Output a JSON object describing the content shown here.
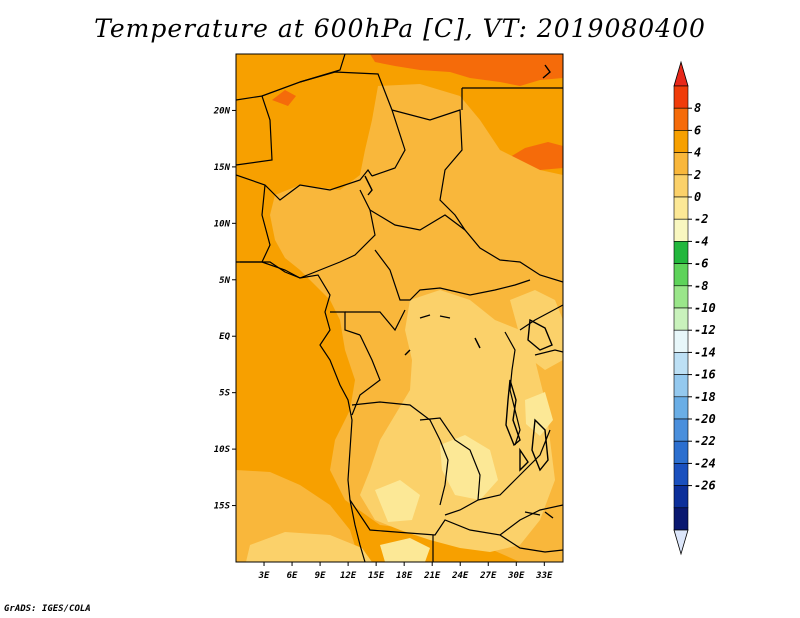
{
  "title": "Temperature at 600hPa [C], VT: 2019080400",
  "credit": "GrADS: IGES/COLA",
  "map": {
    "lon_range": [
      0,
      35
    ],
    "lat_range": [
      -20,
      25
    ],
    "lon_ticks": [
      {
        "value": 3,
        "label": "3E"
      },
      {
        "value": 6,
        "label": "6E"
      },
      {
        "value": 9,
        "label": "9E"
      },
      {
        "value": 12,
        "label": "12E"
      },
      {
        "value": 15,
        "label": "15E"
      },
      {
        "value": 18,
        "label": "18E"
      },
      {
        "value": 21,
        "label": "21E"
      },
      {
        "value": 24,
        "label": "24E"
      },
      {
        "value": 27,
        "label": "27E"
      },
      {
        "value": 30,
        "label": "30E"
      },
      {
        "value": 33,
        "label": "33E"
      }
    ],
    "lat_ticks": [
      {
        "value": 20,
        "label": "20N"
      },
      {
        "value": 15,
        "label": "15N"
      },
      {
        "value": 10,
        "label": "10N"
      },
      {
        "value": 5,
        "label": "5N"
      },
      {
        "value": 0,
        "label": "EQ"
      },
      {
        "value": -5,
        "label": "5S"
      },
      {
        "value": -10,
        "label": "10S"
      },
      {
        "value": -15,
        "label": "15S"
      }
    ]
  },
  "colorbar": {
    "labels": [
      "8",
      "6",
      "4",
      "2",
      "0",
      "-2",
      "-4",
      "-6",
      "-8",
      "-10",
      "-12",
      "-14",
      "-16",
      "-18",
      "-20",
      "-22",
      "-24",
      "-26"
    ],
    "colors": [
      "#f03c0a",
      "#f56b0a",
      "#f7a000",
      "#f9b73b",
      "#fbd16a",
      "#fce896",
      "#f9f7c0",
      "#22b73c",
      "#5ed35a",
      "#9ae68a",
      "#c9f2bc",
      "#e8f7fa",
      "#bde0f5",
      "#94c9ef",
      "#6aaee6",
      "#4a8fdc",
      "#2c6fcf",
      "#1a50be",
      "#0c2f9a",
      "#0a1870"
    ],
    "top_color": "#e8281a",
    "bottom_color": "#dce6fa"
  }
}
